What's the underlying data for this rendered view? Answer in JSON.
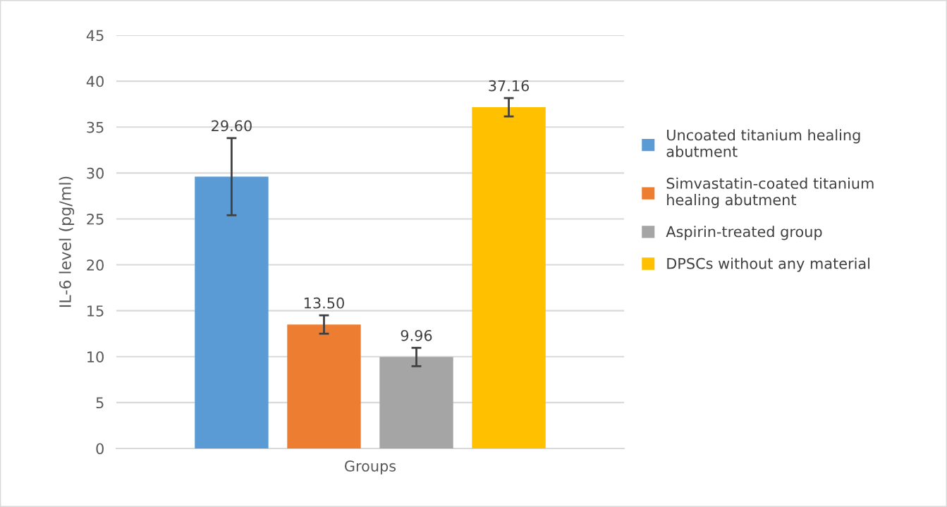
{
  "chart_data": {
    "type": "bar",
    "ylabel": "IL-6 level (pg/ml)",
    "categories": [
      "Groups"
    ],
    "series": [
      {
        "name": "Uncoated titanium healing\nabutment",
        "color": "#5b9bd5",
        "values": [
          29.6
        ],
        "errors": [
          4.2
        ],
        "value_labels": [
          "29.60"
        ]
      },
      {
        "name": "Simvastatin-coated titanium\nhealing abutment",
        "color": "#ed7d31",
        "values": [
          13.5
        ],
        "errors": [
          1.0
        ],
        "value_labels": [
          "13.50"
        ]
      },
      {
        "name": "Aspirin-treated group",
        "color": "#a5a5a5",
        "values": [
          9.96
        ],
        "errors": [
          1.0
        ],
        "value_labels": [
          "9.96"
        ]
      },
      {
        "name": "DPSCs without any material",
        "color": "#ffc000",
        "values": [
          37.16
        ],
        "errors": [
          1.0
        ],
        "value_labels": [
          "37.16"
        ]
      }
    ],
    "ylim": [
      0,
      45
    ],
    "yticks": [
      0,
      5,
      10,
      15,
      20,
      25,
      30,
      35,
      40,
      45
    ],
    "grid": "y",
    "legend": "right"
  }
}
